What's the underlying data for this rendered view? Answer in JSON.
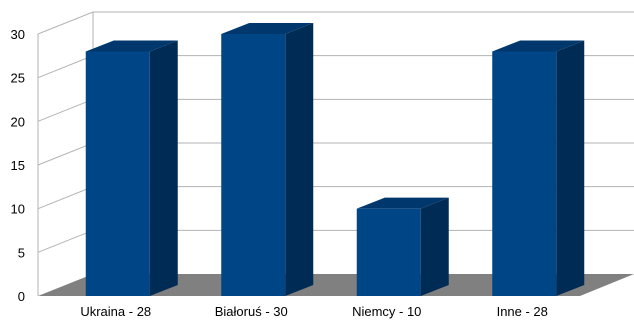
{
  "chart_data": {
    "type": "bar",
    "categories": [
      "Ukraina - 28",
      "Białoruś - 30",
      "Niemcy - 10",
      "Inne - 28"
    ],
    "values": [
      28,
      30,
      10,
      28
    ],
    "title": "",
    "xlabel": "",
    "ylabel": "",
    "ylim": [
      0,
      30
    ],
    "yticks": [
      "0",
      "5",
      "10",
      "15",
      "20",
      "25",
      "30"
    ],
    "grid": true,
    "legend": "none",
    "style": "3d",
    "colors": {
      "bar_front": "#004586",
      "bar_side": "#002b54",
      "bar_top": "#00386d",
      "floor": "#808080",
      "grid": "#b3b3b3",
      "axis_text": "#000000"
    }
  }
}
